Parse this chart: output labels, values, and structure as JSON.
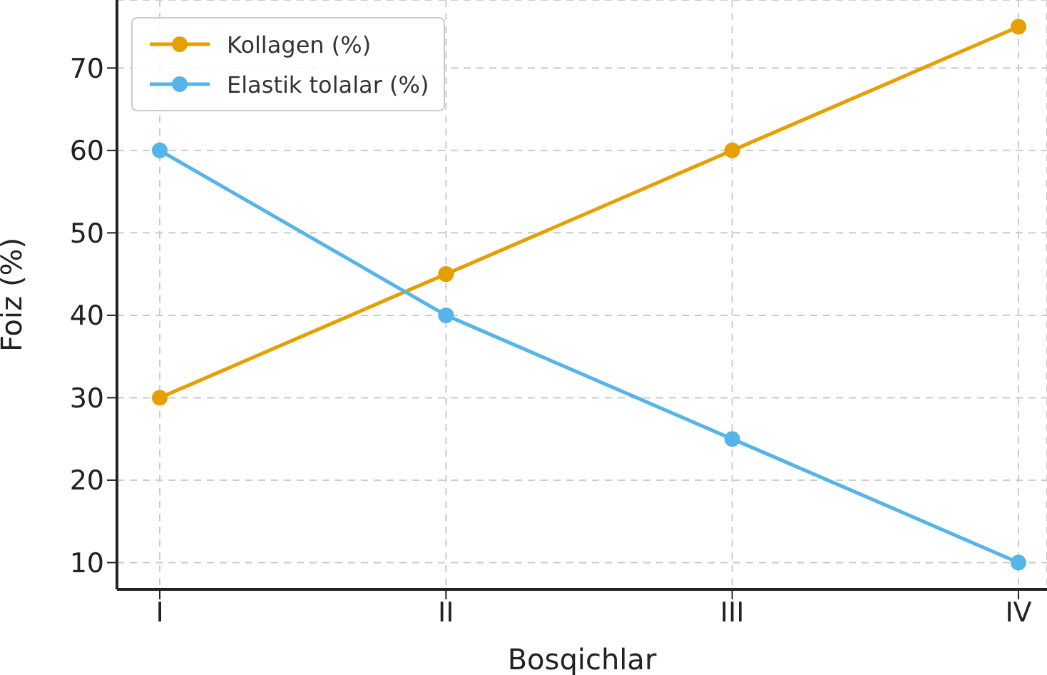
{
  "chart_data": {
    "type": "line",
    "xlabel": "Bosqichlar",
    "ylabel": "Foiz (%)",
    "categories": [
      "I",
      "II",
      "III",
      "IV"
    ],
    "series": [
      {
        "name": "Kollagen (%)",
        "color": "#e69f00",
        "values": [
          30,
          45,
          60,
          75
        ]
      },
      {
        "name": "Elastik tolalar (%)",
        "color": "#56b4e9",
        "values": [
          60,
          40,
          25,
          10
        ]
      }
    ],
    "ylim": [
      6.75,
      78.25
    ],
    "yticks": [
      10,
      20,
      30,
      40,
      50,
      60,
      70
    ],
    "grid": true,
    "legend": "top left",
    "marker": "circle",
    "line_style": "solid"
  }
}
